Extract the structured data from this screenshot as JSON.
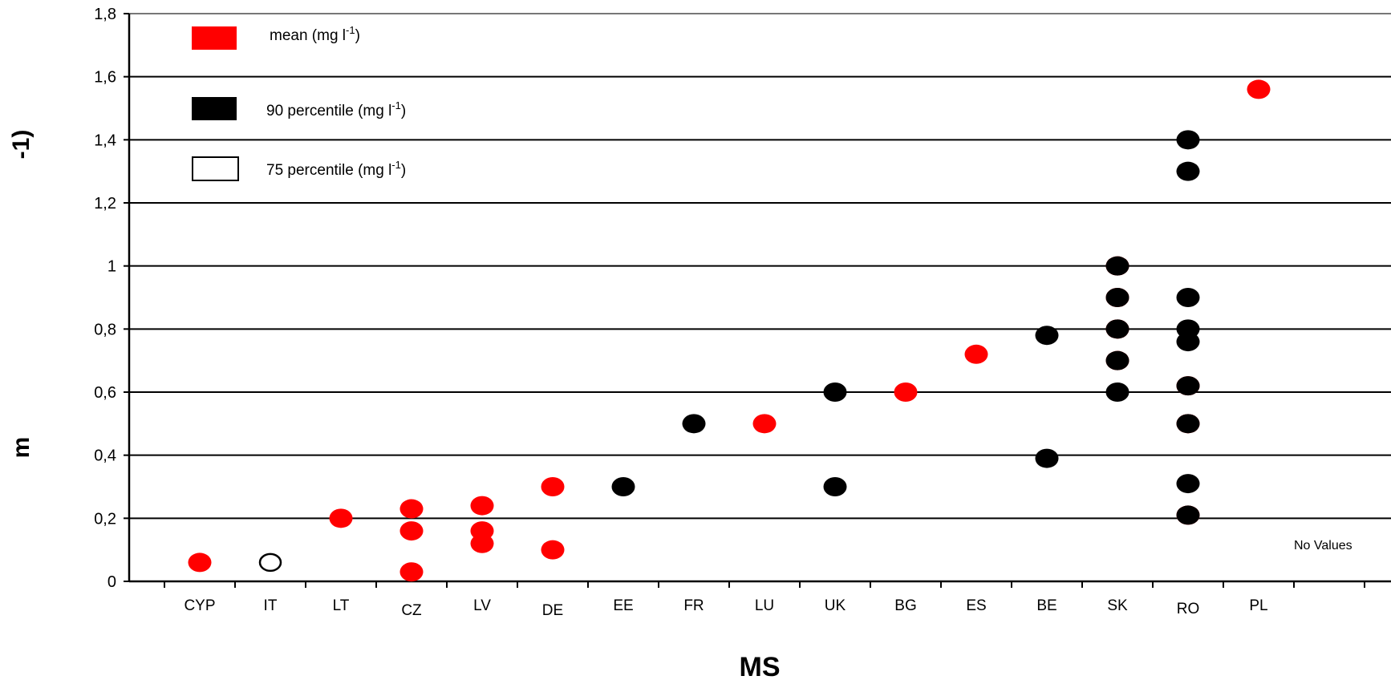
{
  "chart_data": {
    "type": "scatter",
    "xlabel": "MS",
    "ylabel": "-1)",
    "ylabel_glyph": "m",
    "ylim": [
      0,
      1.8
    ],
    "yticks": [
      "0",
      "0,2",
      "0,4",
      "0,6",
      "0,8",
      "1",
      "1,2",
      "1,4",
      "1,6",
      "1,8"
    ],
    "categories": [
      "CYP",
      "IT",
      "LT",
      "CZ",
      "LV",
      "DE",
      "EE",
      "FR",
      "LU",
      "UK",
      "BG",
      "ES",
      "BE",
      "SK",
      "RO",
      "PL"
    ],
    "grid": true,
    "legend_position": "top-left",
    "legend": [
      {
        "label": "mean (mg l",
        "sup": "-1",
        "tail": ")",
        "key": "mean"
      },
      {
        "label": "90 percentile (mg l",
        "sup": "-1",
        "tail": ")",
        "key": "p90"
      },
      {
        "label": "75 percentile (mg l",
        "sup": "-1",
        "tail": ")",
        "key": "p75"
      }
    ],
    "annotation": "No Values",
    "colors": {
      "mean": "#ff0000",
      "p90": "#000000",
      "p75": "#ffffff",
      "grid": "#000000"
    },
    "series": [
      {
        "name": "mean (mg l-1)",
        "key": "mean",
        "points": [
          [
            "CYP",
            0.06
          ],
          [
            "LT",
            0.2
          ],
          [
            "CZ",
            0.23
          ],
          [
            "CZ",
            0.16
          ],
          [
            "CZ",
            0.03
          ],
          [
            "LV",
            0.24
          ],
          [
            "LV",
            0.16
          ],
          [
            "LV",
            0.12
          ],
          [
            "DE",
            0.3
          ],
          [
            "DE",
            0.1
          ],
          [
            "LU",
            0.5
          ],
          [
            "BG",
            0.6
          ],
          [
            "ES",
            0.72
          ],
          [
            "SK",
            1.0
          ],
          [
            "SK",
            0.9
          ],
          [
            "SK",
            0.8
          ],
          [
            "SK",
            0.7
          ],
          [
            "RO",
            0.62
          ],
          [
            "RO",
            0.5
          ],
          [
            "RO",
            0.21
          ],
          [
            "PL",
            1.56
          ]
        ]
      },
      {
        "name": "90 percentile (mg l-1)",
        "key": "p90",
        "points": [
          [
            "EE",
            0.3
          ],
          [
            "FR",
            0.5
          ],
          [
            "UK",
            0.6
          ],
          [
            "UK",
            0.3
          ],
          [
            "BE",
            0.78
          ],
          [
            "BE",
            0.39
          ],
          [
            "SK",
            1.0
          ],
          [
            "SK",
            0.9
          ],
          [
            "SK",
            0.8
          ],
          [
            "SK",
            0.7
          ],
          [
            "SK",
            0.6
          ],
          [
            "RO",
            1.4
          ],
          [
            "RO",
            1.3
          ],
          [
            "RO",
            0.9
          ],
          [
            "RO",
            0.8
          ],
          [
            "RO",
            0.76
          ],
          [
            "RO",
            0.62
          ],
          [
            "RO",
            0.5
          ],
          [
            "RO",
            0.31
          ],
          [
            "RO",
            0.21
          ]
        ]
      },
      {
        "name": "75 percentile (mg l-1)",
        "key": "p75",
        "points": [
          [
            "IT",
            0.06
          ]
        ]
      }
    ]
  }
}
